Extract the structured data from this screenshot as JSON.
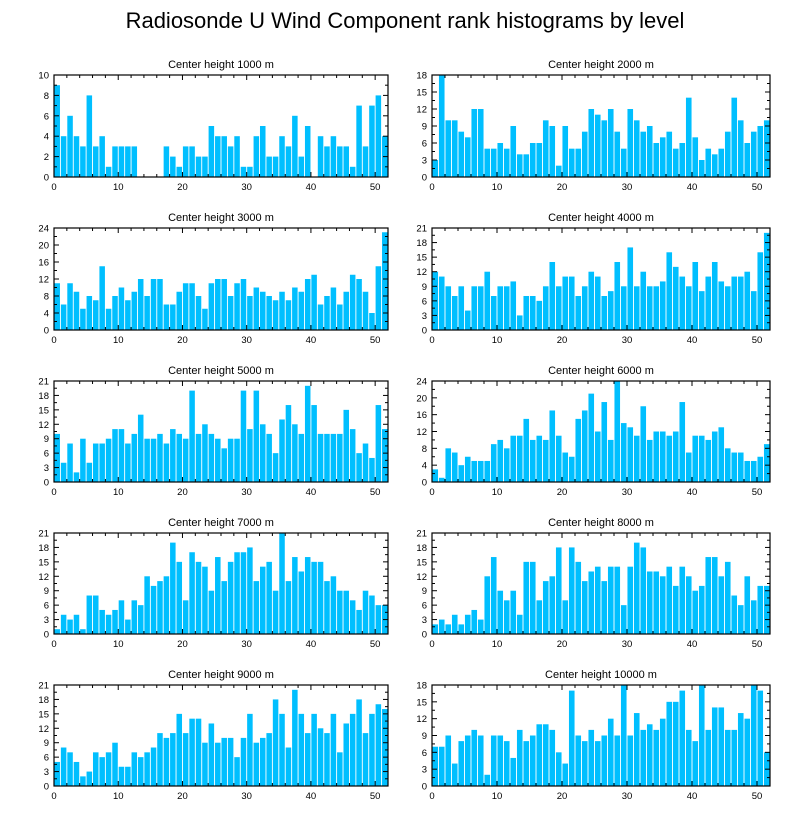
{
  "figure_title": "Radiosonde U Wind Component rank histograms by level",
  "colors": {
    "bar": "#00bfff",
    "axis": "#000000",
    "background": "#ffffff"
  },
  "chart_data": [
    {
      "type": "bar",
      "title": "Center height 1000 m",
      "xlabel": "",
      "ylabel": "",
      "xlim": [
        0,
        52
      ],
      "ylim": [
        0,
        10
      ],
      "yticks": [
        0,
        2,
        4,
        6,
        8,
        10
      ],
      "xticks": [
        0,
        10,
        20,
        30,
        40,
        50
      ],
      "values": [
        9,
        4,
        6,
        4,
        3,
        8,
        3,
        4,
        1,
        3,
        3,
        3,
        3,
        0,
        0,
        0,
        0,
        3,
        2,
        1,
        3,
        3,
        2,
        2,
        5,
        4,
        4,
        3,
        4,
        1,
        1,
        4,
        5,
        2,
        2,
        4,
        3,
        6,
        2,
        5,
        0,
        4,
        3,
        4,
        3,
        3,
        1,
        7,
        3,
        7,
        8,
        4
      ]
    },
    {
      "type": "bar",
      "title": "Center height 2000 m",
      "xlabel": "",
      "ylabel": "",
      "xlim": [
        0,
        52
      ],
      "ylim": [
        0,
        18
      ],
      "yticks": [
        0,
        3,
        6,
        9,
        12,
        15,
        18
      ],
      "xticks": [
        0,
        10,
        20,
        30,
        40,
        50
      ],
      "values": [
        3,
        18,
        10,
        10,
        8,
        7,
        12,
        12,
        5,
        5,
        6,
        5,
        9,
        4,
        4,
        6,
        6,
        10,
        9,
        2,
        9,
        5,
        5,
        8,
        12,
        11,
        10,
        12,
        8,
        5,
        12,
        10,
        8,
        9,
        6,
        7,
        8,
        5,
        6,
        14,
        7,
        3,
        5,
        4,
        5,
        8,
        14,
        10,
        6,
        8,
        9,
        10
      ]
    },
    {
      "type": "bar",
      "title": "Center height 3000 m",
      "xlabel": "",
      "ylabel": "",
      "xlim": [
        0,
        52
      ],
      "ylim": [
        0,
        24
      ],
      "yticks": [
        0,
        4,
        8,
        12,
        16,
        20,
        24
      ],
      "xticks": [
        0,
        10,
        20,
        30,
        40,
        50
      ],
      "values": [
        11,
        6,
        11,
        9,
        5,
        8,
        7,
        15,
        5,
        8,
        10,
        7,
        9,
        12,
        8,
        12,
        12,
        6,
        6,
        9,
        11,
        11,
        8,
        5,
        11,
        12,
        12,
        8,
        11,
        12,
        8,
        10,
        9,
        8,
        7,
        9,
        7,
        10,
        9,
        12,
        13,
        6,
        8,
        10,
        6,
        9,
        13,
        12,
        9,
        4,
        15,
        23
      ]
    },
    {
      "type": "bar",
      "title": "Center height 4000 m",
      "xlabel": "",
      "ylabel": "",
      "xlim": [
        0,
        52
      ],
      "ylim": [
        0,
        21
      ],
      "yticks": [
        0,
        3,
        6,
        9,
        12,
        15,
        18,
        21
      ],
      "xticks": [
        0,
        10,
        20,
        30,
        40,
        50
      ],
      "values": [
        12,
        11,
        9,
        7,
        9,
        4,
        9,
        9,
        12,
        7,
        9,
        9,
        10,
        3,
        7,
        7,
        6,
        9,
        14,
        9,
        11,
        11,
        7,
        9,
        12,
        11,
        7,
        8,
        14,
        9,
        17,
        9,
        12,
        9,
        9,
        10,
        16,
        13,
        11,
        9,
        14,
        8,
        11,
        14,
        10,
        9,
        11,
        11,
        12,
        8,
        16,
        20
      ]
    },
    {
      "type": "bar",
      "title": "Center height 5000 m",
      "xlabel": "",
      "ylabel": "",
      "xlim": [
        0,
        52
      ],
      "ylim": [
        0,
        21
      ],
      "yticks": [
        0,
        3,
        6,
        9,
        12,
        15,
        18,
        21
      ],
      "xticks": [
        0,
        10,
        20,
        30,
        40,
        50
      ],
      "values": [
        10,
        4,
        8,
        2,
        9,
        4,
        8,
        8,
        9,
        11,
        11,
        8,
        10,
        14,
        9,
        9,
        10,
        8,
        11,
        10,
        9,
        19,
        10,
        12,
        10,
        9,
        7,
        9,
        9,
        19,
        11,
        19,
        12,
        10,
        6,
        13,
        16,
        12,
        10,
        20,
        16,
        10,
        10,
        10,
        10,
        15,
        11,
        6,
        8,
        5,
        16,
        11
      ]
    },
    {
      "type": "bar",
      "title": "Center height 6000 m",
      "xlabel": "",
      "ylabel": "",
      "xlim": [
        0,
        52
      ],
      "ylim": [
        0,
        24
      ],
      "yticks": [
        0,
        4,
        8,
        12,
        16,
        20,
        24
      ],
      "xticks": [
        0,
        10,
        20,
        30,
        40,
        50
      ],
      "values": [
        3,
        1,
        8,
        7,
        4,
        6,
        5,
        5,
        5,
        9,
        10,
        8,
        11,
        11,
        15,
        10,
        11,
        10,
        17,
        11,
        7,
        6,
        15,
        17,
        21,
        12,
        19,
        10,
        24,
        14,
        13,
        11,
        18,
        10,
        12,
        12,
        11,
        12,
        19,
        7,
        11,
        11,
        10,
        12,
        13,
        8,
        7,
        7,
        5,
        5,
        6,
        9
      ]
    },
    {
      "type": "bar",
      "title": "Center height 7000 m",
      "xlabel": "",
      "ylabel": "",
      "xlim": [
        0,
        52
      ],
      "ylim": [
        0,
        21
      ],
      "yticks": [
        0,
        3,
        6,
        9,
        12,
        15,
        18,
        21
      ],
      "xticks": [
        0,
        10,
        20,
        30,
        40,
        50
      ],
      "values": [
        1,
        4,
        3,
        4,
        1,
        8,
        8,
        5,
        4,
        5,
        7,
        3,
        7,
        6,
        12,
        10,
        11,
        12,
        19,
        15,
        7,
        17,
        15,
        14,
        9,
        16,
        11,
        15,
        17,
        17,
        18,
        11,
        14,
        15,
        9,
        21,
        11,
        16,
        13,
        16,
        15,
        15,
        11,
        12,
        9,
        9,
        7,
        5,
        9,
        8,
        6,
        6
      ]
    },
    {
      "type": "bar",
      "title": "Center height 8000 m",
      "xlabel": "",
      "ylabel": "",
      "xlim": [
        0,
        52
      ],
      "ylim": [
        0,
        21
      ],
      "yticks": [
        0,
        3,
        6,
        9,
        12,
        15,
        18,
        21
      ],
      "xticks": [
        0,
        10,
        20,
        30,
        40,
        50
      ],
      "values": [
        2,
        3,
        2,
        4,
        2,
        4,
        5,
        3,
        12,
        16,
        9,
        7,
        9,
        4,
        15,
        15,
        7,
        11,
        12,
        18,
        7,
        18,
        15,
        11,
        13,
        14,
        11,
        14,
        14,
        6,
        14,
        19,
        18,
        13,
        13,
        12,
        14,
        10,
        14,
        12,
        9,
        10,
        16,
        16,
        12,
        15,
        8,
        6,
        12,
        7,
        10,
        10
      ]
    },
    {
      "type": "bar",
      "title": "Center height 9000 m",
      "xlabel": "",
      "ylabel": "",
      "xlim": [
        0,
        52
      ],
      "ylim": [
        0,
        21
      ],
      "yticks": [
        0,
        3,
        6,
        9,
        12,
        15,
        18,
        21
      ],
      "xticks": [
        0,
        10,
        20,
        30,
        40,
        50
      ],
      "values": [
        5,
        8,
        7,
        5,
        2,
        3,
        7,
        6,
        7,
        9,
        4,
        4,
        7,
        6,
        7,
        8,
        11,
        10,
        11,
        15,
        11,
        14,
        14,
        9,
        13,
        9,
        10,
        10,
        6,
        10,
        15,
        9,
        10,
        11,
        18,
        15,
        8,
        20,
        15,
        11,
        15,
        12,
        11,
        15,
        7,
        13,
        15,
        18,
        11,
        15,
        17,
        16
      ]
    },
    {
      "type": "bar",
      "title": "Center height 10000 m",
      "xlabel": "",
      "ylabel": "",
      "xlim": [
        0,
        52
      ],
      "ylim": [
        0,
        18
      ],
      "yticks": [
        0,
        3,
        6,
        9,
        12,
        15,
        18
      ],
      "xticks": [
        0,
        10,
        20,
        30,
        40,
        50
      ],
      "values": [
        7,
        7,
        9,
        4,
        8,
        9,
        10,
        9,
        2,
        9,
        9,
        8,
        5,
        10,
        8,
        9,
        11,
        11,
        10,
        6,
        4,
        17,
        9,
        8,
        10,
        8,
        9,
        12,
        9,
        18,
        9,
        13,
        10,
        11,
        10,
        12,
        15,
        15,
        17,
        10,
        8,
        18,
        10,
        14,
        14,
        10,
        10,
        13,
        12,
        18,
        17,
        6
      ]
    }
  ]
}
